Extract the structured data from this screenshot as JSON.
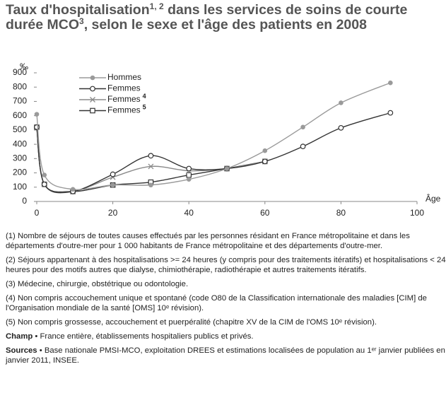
{
  "chart_data": {
    "type": "line",
    "title": [
      "Taux d'hospitalisation",
      "1, 2",
      " dans les services de soins de courte durée MCO",
      "3",
      ", selon le sexe et l'âge des patients en 2008"
    ],
    "y_label": "‰",
    "x_label": "Âge",
    "x": [
      0,
      2,
      9.5,
      20,
      30,
      40,
      50,
      60,
      70,
      80,
      93
    ],
    "xlim": [
      0,
      100
    ],
    "xticks": [
      0,
      20,
      40,
      60,
      80,
      100
    ],
    "ylim": [
      0,
      900
    ],
    "yticks": [
      0,
      100,
      200,
      300,
      400,
      500,
      600,
      700,
      800,
      900
    ],
    "series": [
      {
        "name": "Hommes",
        "color": "#9a9a9a",
        "marker": "filled-circle",
        "values": [
          610,
          185,
          85,
          115,
          115,
          155,
          230,
          355,
          520,
          690,
          830
        ]
      },
      {
        "name": "Femmes",
        "color": "#333333",
        "marker": "open-circle",
        "values": [
          520,
          120,
          70,
          190,
          320,
          230,
          230,
          280,
          385,
          515,
          620
        ]
      },
      {
        "name": "Femmes",
        "name_sup": "4",
        "color": "#8a8a8a",
        "marker": "x",
        "values": [
          520,
          120,
          70,
          170,
          245,
          215,
          230,
          280,
          null,
          null,
          null
        ]
      },
      {
        "name": "Femmes",
        "name_sup": "5",
        "color": "#333333",
        "marker": "square",
        "values": [
          520,
          120,
          70,
          115,
          135,
          185,
          230,
          280,
          null,
          null,
          null
        ]
      }
    ]
  },
  "notes": [
    "(1) Nombre de séjours de toutes causes effectués par les personnes résidant en France métropolitaine et dans les départements d'outre-mer pour 1 000 habitants de France métropolitaine et des départements d'outre-mer.",
    "(2) Séjours appartenant à des hospitalisations >= 24 heures (y compris pour des traitements itératifs) et hospitalisations < 24 heures pour des motifs autres que dialyse, chimiothérapie, radiothérapie et autres traitements itératifs.",
    "(3) Médecine, chirurgie, obstétrique ou odontologie.",
    "(4) Non compris accouchement unique et spontané (code O80 de la Classification internationale des maladies [CIM] de l'Organisation mondiale de la santé [OMS] 10ᵉ révision).",
    "(5) Non compris grossesse, accouchement et puerpéralité (chapitre XV de la CIM de l'OMS 10ᵉ révision)."
  ],
  "champ": {
    "label": "Champ",
    "text": " • France entière, établissements hospitaliers publics et privés."
  },
  "sources": {
    "label": "Sources",
    "text": " • Base nationale PMSI-MCO, exploitation DREES et estimations localisées de population au 1ᵉʳ janvier publiées en janvier 2011, INSEE."
  }
}
